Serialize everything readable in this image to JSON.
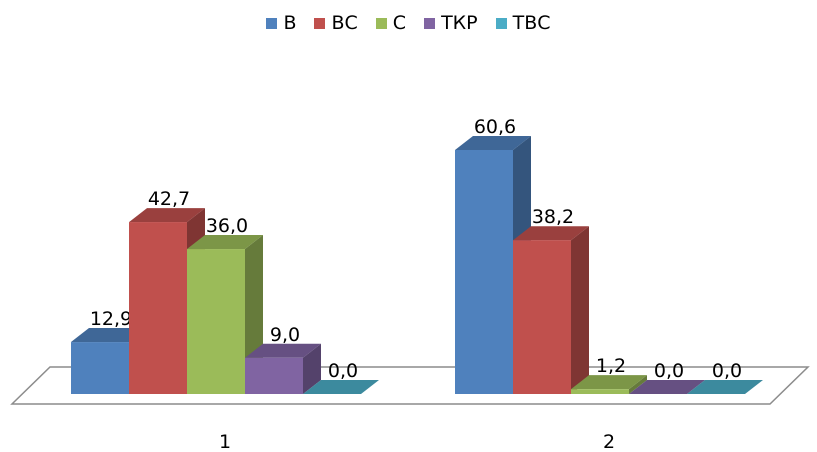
{
  "chart_data": {
    "type": "bar",
    "categories": [
      "1",
      "2"
    ],
    "series": [
      {
        "name": "В",
        "values": [
          12.9,
          60.6
        ],
        "labels": [
          "12,9",
          "60,6"
        ],
        "color": "#4F81BD"
      },
      {
        "name": "ВС",
        "values": [
          42.7,
          38.2
        ],
        "labels": [
          "42,7",
          "38,2"
        ],
        "color": "#C0504D"
      },
      {
        "name": "С",
        "values": [
          36.0,
          1.2
        ],
        "labels": [
          "36,0",
          "1,2"
        ],
        "color": "#9BBB59"
      },
      {
        "name": "ТКР",
        "values": [
          9.0,
          0.0
        ],
        "labels": [
          "9,0",
          "0,0"
        ],
        "color": "#8064A2"
      },
      {
        "name": "ТВС",
        "values": [
          0.0,
          0.0
        ],
        "labels": [
          "0,0",
          "0,0"
        ],
        "color": "#4BACC6"
      }
    ],
    "title": "",
    "xlabel": "",
    "ylabel": "",
    "ylim": [
      0,
      65
    ],
    "grid": false,
    "legend_position": "top",
    "style": "3d-clustered-column"
  }
}
